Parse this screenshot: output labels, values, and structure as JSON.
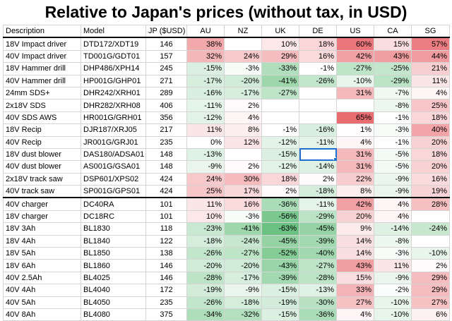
{
  "title": "Relative to Japan's prices (without tax, in USD)",
  "headers": [
    "Description",
    "Model",
    "JP ($USD)",
    "AU",
    "NZ",
    "UK",
    "DE",
    "US",
    "CA",
    "SG"
  ],
  "rows": [
    [
      "18V Impact driver",
      "DTD172/XDT19",
      "146",
      "38%",
      "",
      "10%",
      "18%",
      "60%",
      "15%",
      "57%"
    ],
    [
      "40V Impact driver",
      "TD001G/GDT01",
      "157",
      "32%",
      "24%",
      "29%",
      "16%",
      "42%",
      "43%",
      "44%"
    ],
    [
      "18V Hammer drill",
      "DHP486/XPH14",
      "245",
      "-15%",
      "-3%",
      "-33%",
      "-1%",
      "-27%",
      "-25%",
      "21%"
    ],
    [
      "40V Hammer drill",
      "HP001G/GHP01",
      "271",
      "-17%",
      "-20%",
      "-41%",
      "-26%",
      "-10%",
      "-29%",
      "11%"
    ],
    [
      "24mm SDS+",
      "DHR242/XRH01",
      "289",
      "-16%",
      "-17%",
      "-27%",
      "",
      "31%",
      "-7%",
      "4%"
    ],
    [
      "2x18V SDS",
      "DHR282/XRH08",
      "406",
      "-11%",
      "2%",
      "",
      "",
      "",
      "-8%",
      "25%"
    ],
    [
      "40V SDS AWS",
      "HR001G/GRH01",
      "356",
      "-12%",
      "4%",
      "",
      "",
      "65%",
      "-1%",
      "18%"
    ],
    [
      "18V Recip",
      "DJR187/XRJ05",
      "217",
      "11%",
      "8%",
      "-1%",
      "-16%",
      "1%",
      "-3%",
      "40%"
    ],
    [
      "40V Recip",
      "JR001G/GRJ01",
      "235",
      "0%",
      "12%",
      "-12%",
      "-11%",
      "4%",
      "-1%",
      "20%"
    ],
    [
      "18V dust blower",
      "DAS180/ADSA01",
      "148",
      "-13%",
      "",
      "-15%",
      "",
      "31%",
      "-5%",
      "18%"
    ],
    [
      "40V dust blower",
      "AS001G/GSA01",
      "148",
      "-9%",
      "2%",
      "-12%",
      "-14%",
      "31%",
      "-5%",
      "20%"
    ],
    [
      "2x18V track saw",
      "DSP601/XPS02",
      "424",
      "24%",
      "30%",
      "18%",
      "2%",
      "22%",
      "-9%",
      "16%"
    ],
    [
      "40V track saw",
      "SP001G/GPS01",
      "424",
      "25%",
      "17%",
      "2%",
      "-18%",
      "8%",
      "-9%",
      "19%"
    ],
    [
      "40V charger",
      "DC40RA",
      "101",
      "11%",
      "16%",
      "-36%",
      "-11%",
      "42%",
      "4%",
      "28%"
    ],
    [
      "18V charger",
      "DC18RC",
      "101",
      "10%",
      "-3%",
      "-56%",
      "-29%",
      "20%",
      "4%",
      ""
    ],
    [
      "18V 3Ah",
      "BL1830",
      "118",
      "-23%",
      "-41%",
      "-63%",
      "-45%",
      "9%",
      "-14%",
      "-24%"
    ],
    [
      "18V 4Ah",
      "BL1840",
      "122",
      "-18%",
      "-24%",
      "-45%",
      "-39%",
      "14%",
      "-8%",
      ""
    ],
    [
      "18V 5Ah",
      "BL1850",
      "138",
      "-26%",
      "-27%",
      "-52%",
      "-40%",
      "14%",
      "-3%",
      "-10%"
    ],
    [
      "18V 6Ah",
      "BL1860",
      "146",
      "-20%",
      "-20%",
      "-43%",
      "-27%",
      "43%",
      "11%",
      "2%"
    ],
    [
      "40V 2.5Ah",
      "BL4025",
      "146",
      "-28%",
      "-17%",
      "-39%",
      "-28%",
      "15%",
      "-9%",
      "29%"
    ],
    [
      "40V 4Ah",
      "BL4040",
      "172",
      "-19%",
      "-9%",
      "-15%",
      "-13%",
      "33%",
      "-2%",
      "29%"
    ],
    [
      "40V 5Ah",
      "BL4050",
      "235",
      "-26%",
      "-18%",
      "-19%",
      "-30%",
      "27%",
      "-10%",
      "27%"
    ],
    [
      "40V 8Ah",
      "BL4080",
      "375",
      "-34%",
      "-32%",
      "-15%",
      "-36%",
      "4%",
      "-10%",
      "6%"
    ]
  ],
  "selected_cell": {
    "row": 9,
    "col": 6
  },
  "colors": {
    "positive": "#e8646a",
    "negative": "#63be7b",
    "neutral": "#ffffff"
  }
}
